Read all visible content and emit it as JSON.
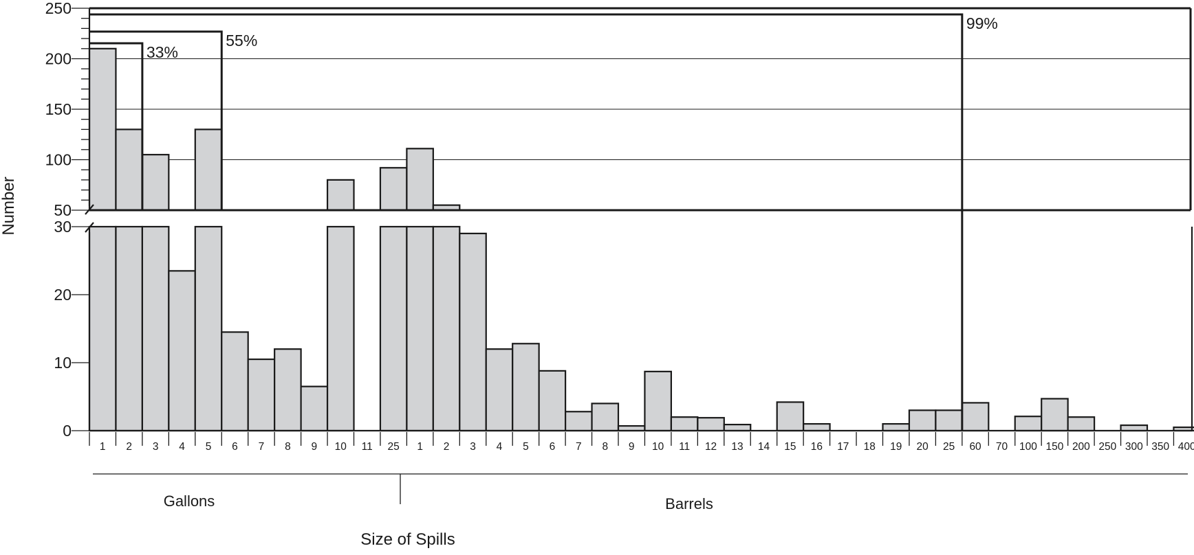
{
  "chart_data": {
    "type": "bar",
    "title": "",
    "xlabel": "Size of Spills",
    "ylabel": "Number",
    "grid": true,
    "y_axis": {
      "broken": true,
      "lower_range": [
        0,
        30
      ],
      "upper_range": [
        50,
        250
      ],
      "lower_ticks": [
        0,
        10,
        20,
        30
      ],
      "upper_ticks": [
        50,
        100,
        150,
        200,
        250
      ]
    },
    "groups": [
      {
        "label": "Gallons",
        "categories": [
          "1",
          "2",
          "3",
          "4",
          "5",
          "6",
          "7",
          "8",
          "9",
          "10",
          "11"
        ]
      },
      {
        "label": "Barrels",
        "categories": [
          "25",
          "1",
          "2",
          "3",
          "4",
          "5",
          "6",
          "7",
          "8",
          "9",
          "10",
          "11",
          "12",
          "13",
          "14",
          "15",
          "16",
          "17",
          "18",
          "19",
          "20",
          "25",
          "60",
          "70",
          "100",
          "150",
          "200",
          "250",
          "300",
          "350",
          "400"
        ]
      }
    ],
    "categories": [
      "1",
      "2",
      "3",
      "4",
      "5",
      "6",
      "7",
      "8",
      "9",
      "10",
      "11",
      "25",
      "1",
      "2",
      "3",
      "4",
      "5",
      "6",
      "7",
      "8",
      "9",
      "10",
      "11",
      "12",
      "13",
      "14",
      "15",
      "16",
      "17",
      "18",
      "19",
      "20",
      "25",
      "60",
      "70",
      "100",
      "150",
      "200",
      "250",
      "300",
      "350",
      "400"
    ],
    "values": [
      210,
      130,
      105,
      23.5,
      130,
      14.5,
      10.5,
      12,
      6.5,
      80,
      0,
      92,
      111,
      55,
      29,
      12,
      12.8,
      8.8,
      2.8,
      4,
      0.7,
      8.7,
      2,
      1.9,
      0.9,
      0,
      4.2,
      1,
      0,
      0,
      1,
      3,
      3,
      4.1,
      0,
      2.1,
      4.7,
      2,
      0,
      0.8,
      0,
      0.5
    ],
    "cumulative_brackets": [
      {
        "label": "33%",
        "end_category_index": 1
      },
      {
        "label": "55%",
        "end_category_index": 4
      },
      {
        "label": "99%",
        "end_category_index": 32
      }
    ]
  }
}
